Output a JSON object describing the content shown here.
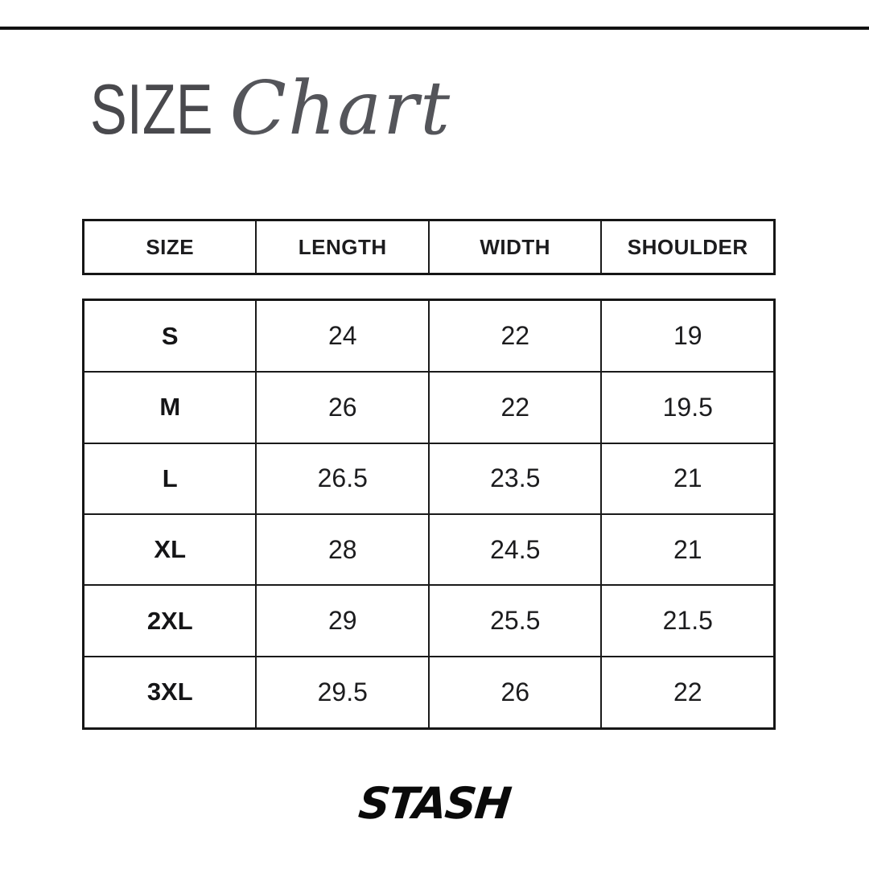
{
  "title": {
    "main": "SIZE",
    "script": "Chart"
  },
  "table": {
    "headers": {
      "size": "SIZE",
      "length": "LENGTH",
      "width": "WIDTH",
      "shoulder": "SHOULDER"
    },
    "rows": [
      {
        "size": "S",
        "length": "24",
        "width": "22",
        "shoulder": "19"
      },
      {
        "size": "M",
        "length": "26",
        "width": "22",
        "shoulder": "19.5"
      },
      {
        "size": "L",
        "length": "26.5",
        "width": "23.5",
        "shoulder": "21"
      },
      {
        "size": "XL",
        "length": "28",
        "width": "24.5",
        "shoulder": "21"
      },
      {
        "size": "2XL",
        "length": "29",
        "width": "25.5",
        "shoulder": "21.5"
      },
      {
        "size": "3XL",
        "length": "29.5",
        "width": "26",
        "shoulder": "22"
      }
    ]
  },
  "footer": {
    "brand": "STASH"
  },
  "colors": {
    "background": "#ffffff",
    "border": "#1a1a1a",
    "title_gray": "#49494d",
    "text": "#1c1c1e"
  }
}
